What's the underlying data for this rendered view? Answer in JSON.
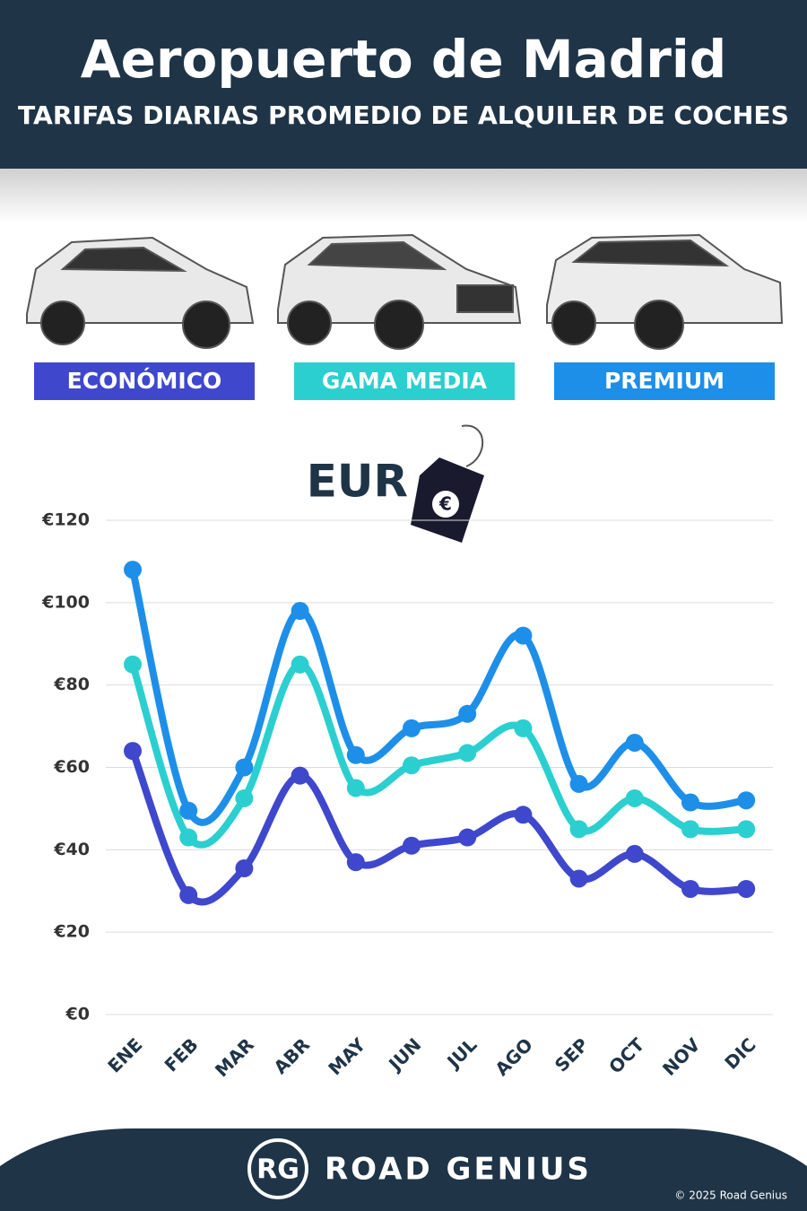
{
  "header": {
    "title": "Aeropuerto de Madrid",
    "subtitle": "TARIFAS DIARIAS PROMEDIO DE ALQUILER DE COCHES"
  },
  "chart_data": {
    "type": "line",
    "y_label": "EUR",
    "categories": [
      "ENE",
      "FEB",
      "MAR",
      "ABR",
      "MAY",
      "JUN",
      "JUL",
      "AGO",
      "SEP",
      "OCT",
      "NOV",
      "DIC"
    ],
    "series": [
      {
        "name": "ECONÓMICO",
        "color": "#3f48cc",
        "values": [
          64,
          29,
          35.5,
          58,
          37,
          41,
          43,
          48.5,
          33,
          39,
          30.5,
          30.5
        ]
      },
      {
        "name": "GAMA MEDIA",
        "color": "#2ccfcf",
        "values": [
          85,
          43,
          52.5,
          85,
          55,
          60.5,
          63.5,
          69.5,
          45,
          52.5,
          45,
          45
        ]
      },
      {
        "name": "PREMIUM",
        "color": "#1e8fe8",
        "values": [
          108,
          49.5,
          60,
          98,
          63,
          69.5,
          73,
          92,
          56,
          66,
          51.5,
          52
        ]
      }
    ],
    "ylim": [
      0,
      120
    ],
    "yticks": [
      {
        "value": 0,
        "label": "€0"
      },
      {
        "value": 20,
        "label": "€20"
      },
      {
        "value": 40,
        "label": "€40"
      },
      {
        "value": 60,
        "label": "€60"
      },
      {
        "value": 80,
        "label": "€80"
      },
      {
        "value": 100,
        "label": "€100"
      },
      {
        "value": 120,
        "label": "€120"
      }
    ],
    "grid": true
  },
  "footer": {
    "logo": "RG",
    "brand": "ROAD GENIUS",
    "copyright": "© 2025 Road Genius"
  }
}
